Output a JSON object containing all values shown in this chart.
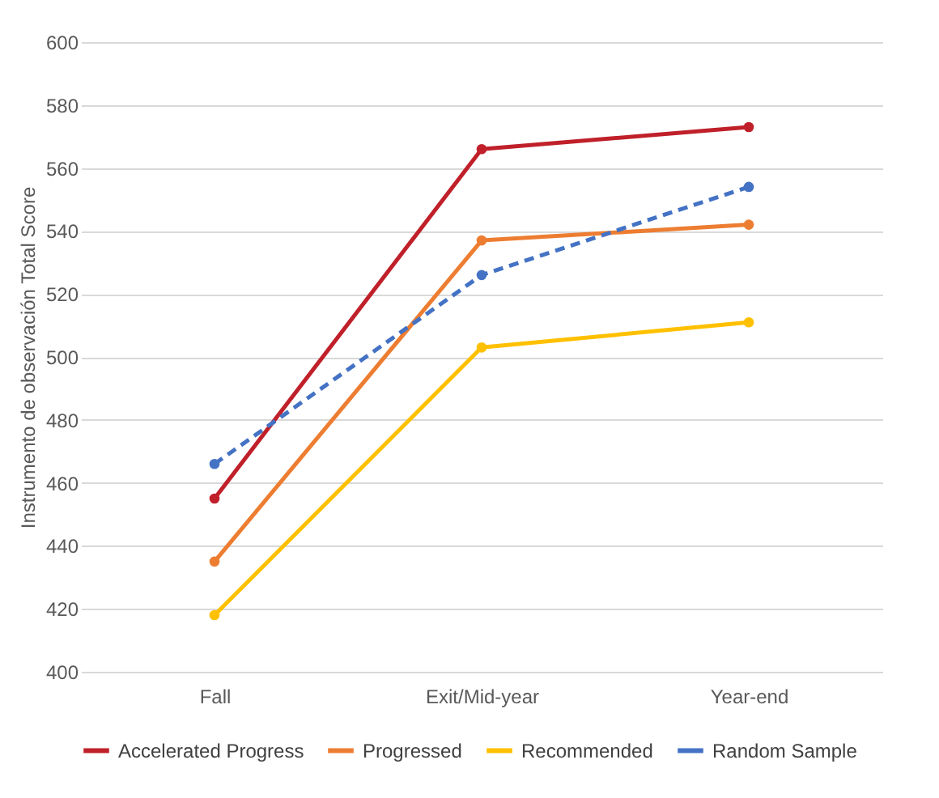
{
  "chart_data": {
    "type": "line",
    "ylabel": "Instrumento de observación Total Score",
    "categories": [
      "Fall",
      "Exit/Mid-year",
      "Year-end"
    ],
    "series": [
      {
        "name": "Accelerated Progress",
        "color": "#c0202a",
        "values": [
          455,
          566,
          573
        ]
      },
      {
        "name": "Progressed",
        "color": "#ed7d31",
        "values": [
          435,
          537,
          542
        ]
      },
      {
        "name": "Recommended",
        "color": "#ffc000",
        "values": [
          418,
          503,
          511
        ]
      },
      {
        "name": "Random Sample",
        "color": "#4472c4",
        "values": [
          466,
          526,
          554
        ],
        "line_style": "dashed"
      }
    ],
    "ylim": [
      400,
      600
    ],
    "yticks": [
      400,
      420,
      440,
      460,
      480,
      500,
      520,
      540,
      560,
      580,
      600
    ],
    "grid": "y",
    "legend": "bottom",
    "marker": "circle",
    "line_style": "solid"
  }
}
